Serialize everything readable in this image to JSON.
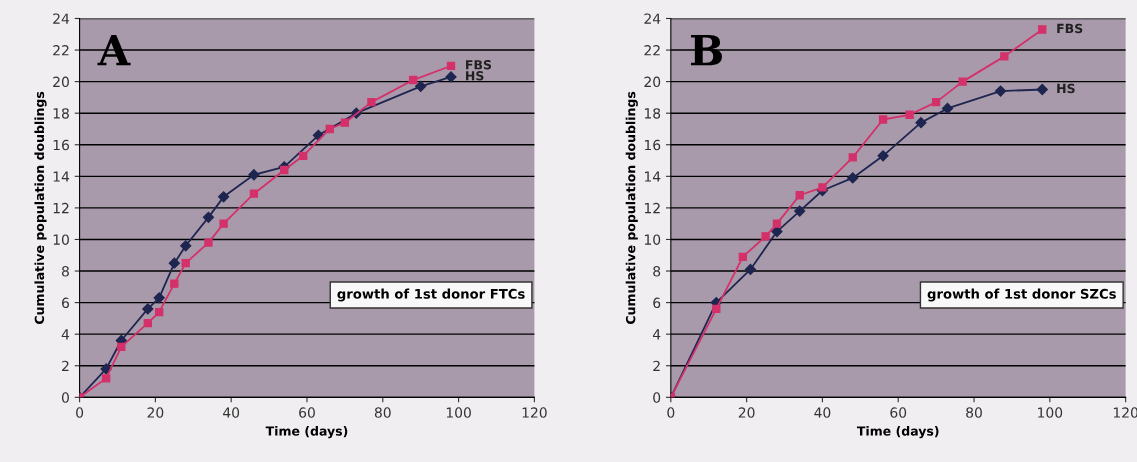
{
  "chart_data": [
    {
      "type": "line",
      "xlabel": "Time (days)",
      "ylabel": "Cumulative population doublings",
      "annotations": [
        "A",
        "growth of 1st donor FTCs"
      ],
      "xlim": [
        0,
        120
      ],
      "xticks": [
        0,
        20,
        40,
        60,
        80,
        100,
        120
      ],
      "ylim": [
        0,
        24
      ],
      "yticks": [
        0,
        2,
        4,
        6,
        8,
        10,
        12,
        14,
        16,
        18,
        20,
        22,
        24
      ],
      "grid": "y",
      "legend": false,
      "line_style": "solid",
      "series": [
        {
          "name": "HS",
          "color": "#1e2650",
          "marker": "diamond",
          "x": [
            0,
            7,
            11,
            18,
            21,
            25,
            28,
            34,
            38,
            46,
            54,
            63,
            73,
            90,
            98
          ],
          "values": [
            0,
            1.8,
            3.6,
            5.6,
            6.3,
            8.5,
            9.6,
            11.4,
            12.7,
            14.1,
            14.6,
            16.6,
            18.0,
            19.7,
            20.3
          ]
        },
        {
          "name": "FBS",
          "color": "#d4306a",
          "marker": "square",
          "x": [
            0,
            7,
            11,
            18,
            21,
            25,
            28,
            34,
            38,
            46,
            54,
            59,
            66,
            70,
            77,
            88,
            98
          ],
          "values": [
            0,
            1.2,
            3.2,
            4.7,
            5.4,
            7.2,
            8.5,
            9.8,
            11.0,
            12.9,
            14.4,
            15.3,
            17.0,
            17.4,
            18.7,
            20.1,
            21.0
          ]
        }
      ]
    },
    {
      "type": "line",
      "xlabel": "Time (days)",
      "ylabel": "Cumulative population doublings",
      "annotations": [
        "B",
        "growth of 1st donor SZCs"
      ],
      "xlim": [
        0,
        120
      ],
      "xticks": [
        0,
        20,
        40,
        60,
        80,
        100,
        120
      ],
      "ylim": [
        0,
        24
      ],
      "yticks": [
        0,
        2,
        4,
        6,
        8,
        10,
        12,
        14,
        16,
        18,
        20,
        22,
        24
      ],
      "grid": "y",
      "legend": false,
      "line_style": "solid",
      "series": [
        {
          "name": "HS",
          "color": "#1e2650",
          "marker": "diamond",
          "x": [
            0,
            12,
            21,
            28,
            34,
            40,
            48,
            56,
            66,
            73,
            87,
            98
          ],
          "values": [
            0,
            6.0,
            8.1,
            10.5,
            11.8,
            13.1,
            13.9,
            15.3,
            17.4,
            18.3,
            19.4,
            19.5
          ]
        },
        {
          "name": "FBS",
          "color": "#d4306a",
          "marker": "square",
          "x": [
            0,
            12,
            19,
            25,
            28,
            34,
            40,
            48,
            56,
            63,
            70,
            77,
            88,
            98
          ],
          "values": [
            0,
            5.6,
            8.9,
            10.2,
            11.0,
            12.8,
            13.3,
            15.2,
            17.6,
            17.9,
            18.7,
            20.0,
            21.6,
            23.3
          ]
        }
      ]
    }
  ]
}
